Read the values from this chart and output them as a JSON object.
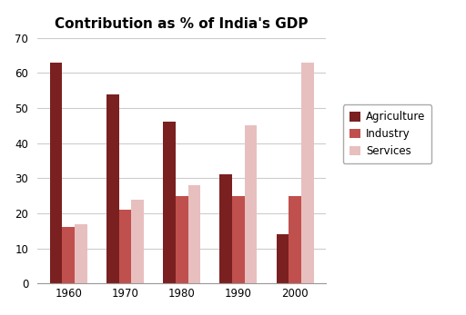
{
  "title": "Contribution as % of India's GDP",
  "years": [
    "1960",
    "1970",
    "1980",
    "1990",
    "2000"
  ],
  "sectors": [
    "Agriculture",
    "Industry",
    "Services"
  ],
  "values": {
    "Agriculture": [
      63,
      54,
      46,
      31,
      14
    ],
    "Industry": [
      16,
      21,
      25,
      25,
      25
    ],
    "Services": [
      17,
      24,
      28,
      45,
      63
    ]
  },
  "colors": {
    "Agriculture": "#7B2020",
    "Industry": "#C0504D",
    "Services": "#E8BFBF"
  },
  "ylim": [
    0,
    70
  ],
  "yticks": [
    0,
    10,
    20,
    30,
    40,
    50,
    60,
    70
  ],
  "bar_width": 0.22,
  "legend_fontsize": 8.5,
  "title_fontsize": 11,
  "tick_fontsize": 8.5,
  "background_color": "#FFFFFF",
  "grid_color": "#CCCCCC"
}
